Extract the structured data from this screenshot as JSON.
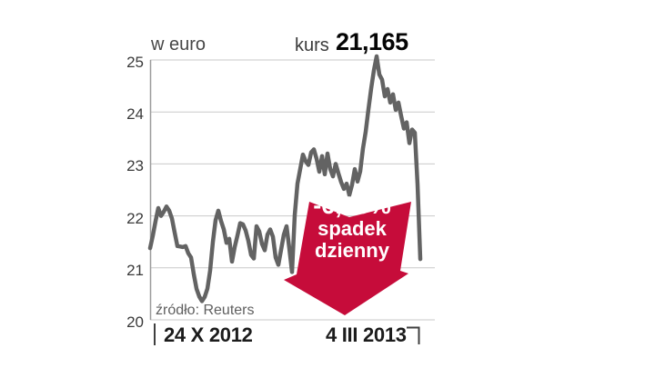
{
  "header": {
    "unit_label": "w euro",
    "price_label": "kurs",
    "price_value": "21,165"
  },
  "chart_data": {
    "type": "line",
    "title": "w euro",
    "ylabel": "euro",
    "ylim": [
      20,
      25
    ],
    "yticks": [
      25,
      24,
      23,
      22,
      21,
      20
    ],
    "grid": true,
    "x_start_label": "24 X 2012",
    "x_end_label": "4 III 2013",
    "last_value": 21.165,
    "values": [
      21.38,
      21.62,
      21.9,
      22.15,
      22.0,
      22.08,
      22.18,
      22.1,
      21.95,
      21.68,
      21.42,
      21.41,
      21.4,
      21.42,
      21.28,
      21.2,
      20.88,
      20.6,
      20.45,
      20.36,
      20.44,
      20.6,
      20.95,
      21.5,
      21.92,
      22.1,
      21.9,
      21.74,
      21.48,
      21.56,
      21.12,
      21.4,
      21.62,
      21.86,
      21.84,
      21.72,
      21.52,
      21.25,
      21.18,
      21.8,
      21.7,
      21.46,
      21.34,
      21.64,
      21.74,
      21.6,
      21.2,
      21.06,
      21.35,
      21.64,
      21.8,
      21.38,
      20.92,
      22.02,
      22.62,
      22.9,
      23.18,
      23.05,
      22.98,
      23.22,
      23.28,
      23.1,
      22.85,
      23.15,
      22.8,
      23.2,
      22.9,
      22.76,
      23.0,
      22.82,
      22.65,
      22.52,
      22.62,
      22.4,
      22.6,
      22.9,
      22.66,
      22.86,
      23.3,
      23.62,
      24.05,
      24.45,
      24.8,
      25.07,
      24.72,
      24.62,
      24.3,
      24.44,
      24.18,
      24.34,
      24.04,
      24.18,
      23.92,
      23.68,
      23.8,
      23.4,
      23.66,
      23.6,
      22.6,
      21.17
    ]
  },
  "annotation": {
    "percent": "-6,06%",
    "word1": "spadek",
    "word2": "dzienny"
  },
  "source_label": "źródło: Reuters",
  "colors": {
    "line": "#636363",
    "grid": "#c9c9c9",
    "axis": "#9b9b9b",
    "accent_red": "#c60c3a",
    "text_dark": "#1c1c1c",
    "text_gray": "#5f5f5f"
  }
}
